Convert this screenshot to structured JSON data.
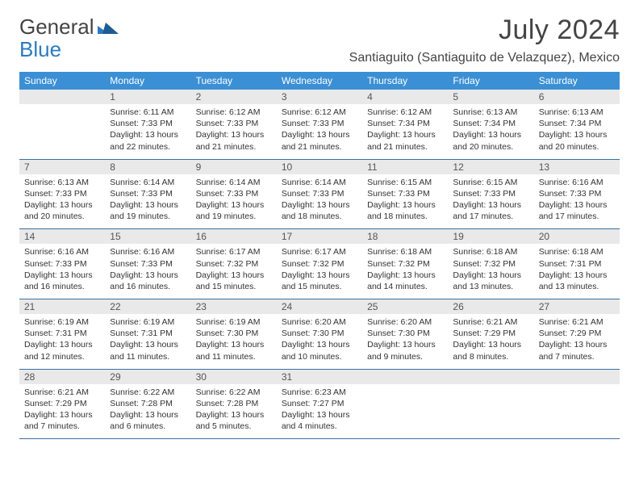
{
  "brand": {
    "part1": "General",
    "part2": "Blue"
  },
  "title": "July 2024",
  "location": "Santiaguito (Santiaguito de Velazquez), Mexico",
  "colors": {
    "header_bg": "#3b8fd4",
    "header_fg": "#ffffff",
    "daynum_bg": "#e9e9e9",
    "row_border": "#3b6fa0",
    "text": "#333333",
    "brand_blue": "#2b7bbf"
  },
  "weekdays": [
    "Sunday",
    "Monday",
    "Tuesday",
    "Wednesday",
    "Thursday",
    "Friday",
    "Saturday"
  ],
  "weeks": [
    [
      null,
      {
        "n": "1",
        "sr": "6:11 AM",
        "ss": "7:33 PM",
        "dl": "13 hours and 22 minutes."
      },
      {
        "n": "2",
        "sr": "6:12 AM",
        "ss": "7:33 PM",
        "dl": "13 hours and 21 minutes."
      },
      {
        "n": "3",
        "sr": "6:12 AM",
        "ss": "7:33 PM",
        "dl": "13 hours and 21 minutes."
      },
      {
        "n": "4",
        "sr": "6:12 AM",
        "ss": "7:34 PM",
        "dl": "13 hours and 21 minutes."
      },
      {
        "n": "5",
        "sr": "6:13 AM",
        "ss": "7:34 PM",
        "dl": "13 hours and 20 minutes."
      },
      {
        "n": "6",
        "sr": "6:13 AM",
        "ss": "7:34 PM",
        "dl": "13 hours and 20 minutes."
      }
    ],
    [
      {
        "n": "7",
        "sr": "6:13 AM",
        "ss": "7:33 PM",
        "dl": "13 hours and 20 minutes."
      },
      {
        "n": "8",
        "sr": "6:14 AM",
        "ss": "7:33 PM",
        "dl": "13 hours and 19 minutes."
      },
      {
        "n": "9",
        "sr": "6:14 AM",
        "ss": "7:33 PM",
        "dl": "13 hours and 19 minutes."
      },
      {
        "n": "10",
        "sr": "6:14 AM",
        "ss": "7:33 PM",
        "dl": "13 hours and 18 minutes."
      },
      {
        "n": "11",
        "sr": "6:15 AM",
        "ss": "7:33 PM",
        "dl": "13 hours and 18 minutes."
      },
      {
        "n": "12",
        "sr": "6:15 AM",
        "ss": "7:33 PM",
        "dl": "13 hours and 17 minutes."
      },
      {
        "n": "13",
        "sr": "6:16 AM",
        "ss": "7:33 PM",
        "dl": "13 hours and 17 minutes."
      }
    ],
    [
      {
        "n": "14",
        "sr": "6:16 AM",
        "ss": "7:33 PM",
        "dl": "13 hours and 16 minutes."
      },
      {
        "n": "15",
        "sr": "6:16 AM",
        "ss": "7:33 PM",
        "dl": "13 hours and 16 minutes."
      },
      {
        "n": "16",
        "sr": "6:17 AM",
        "ss": "7:32 PM",
        "dl": "13 hours and 15 minutes."
      },
      {
        "n": "17",
        "sr": "6:17 AM",
        "ss": "7:32 PM",
        "dl": "13 hours and 15 minutes."
      },
      {
        "n": "18",
        "sr": "6:18 AM",
        "ss": "7:32 PM",
        "dl": "13 hours and 14 minutes."
      },
      {
        "n": "19",
        "sr": "6:18 AM",
        "ss": "7:32 PM",
        "dl": "13 hours and 13 minutes."
      },
      {
        "n": "20",
        "sr": "6:18 AM",
        "ss": "7:31 PM",
        "dl": "13 hours and 13 minutes."
      }
    ],
    [
      {
        "n": "21",
        "sr": "6:19 AM",
        "ss": "7:31 PM",
        "dl": "13 hours and 12 minutes."
      },
      {
        "n": "22",
        "sr": "6:19 AM",
        "ss": "7:31 PM",
        "dl": "13 hours and 11 minutes."
      },
      {
        "n": "23",
        "sr": "6:19 AM",
        "ss": "7:30 PM",
        "dl": "13 hours and 11 minutes."
      },
      {
        "n": "24",
        "sr": "6:20 AM",
        "ss": "7:30 PM",
        "dl": "13 hours and 10 minutes."
      },
      {
        "n": "25",
        "sr": "6:20 AM",
        "ss": "7:30 PM",
        "dl": "13 hours and 9 minutes."
      },
      {
        "n": "26",
        "sr": "6:21 AM",
        "ss": "7:29 PM",
        "dl": "13 hours and 8 minutes."
      },
      {
        "n": "27",
        "sr": "6:21 AM",
        "ss": "7:29 PM",
        "dl": "13 hours and 7 minutes."
      }
    ],
    [
      {
        "n": "28",
        "sr": "6:21 AM",
        "ss": "7:29 PM",
        "dl": "13 hours and 7 minutes."
      },
      {
        "n": "29",
        "sr": "6:22 AM",
        "ss": "7:28 PM",
        "dl": "13 hours and 6 minutes."
      },
      {
        "n": "30",
        "sr": "6:22 AM",
        "ss": "7:28 PM",
        "dl": "13 hours and 5 minutes."
      },
      {
        "n": "31",
        "sr": "6:23 AM",
        "ss": "7:27 PM",
        "dl": "13 hours and 4 minutes."
      },
      null,
      null,
      null
    ]
  ],
  "labels": {
    "sunrise": "Sunrise:",
    "sunset": "Sunset:",
    "daylight": "Daylight:"
  }
}
